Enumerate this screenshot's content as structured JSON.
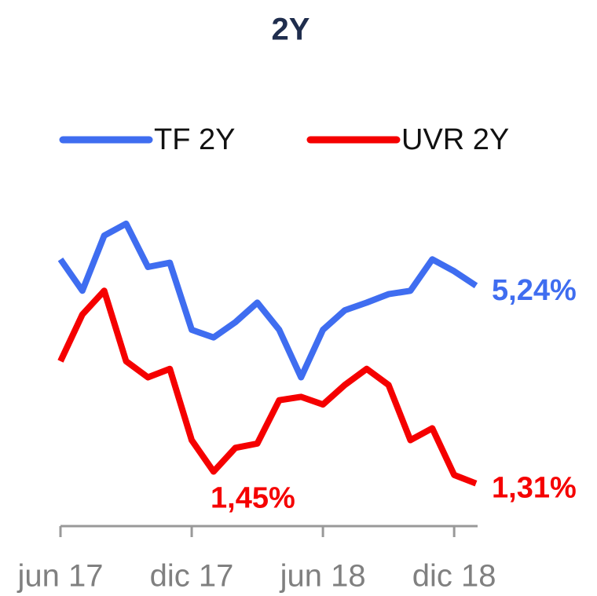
{
  "chart_data": {
    "type": "line",
    "title": "2Y",
    "x": [
      "2017-06",
      "2017-07",
      "2017-08",
      "2017-09",
      "2017-10",
      "2017-11",
      "2017-12",
      "2018-01",
      "2018-02",
      "2018-03",
      "2018-04",
      "2018-05",
      "2018-06",
      "2018-07",
      "2018-08",
      "2018-09",
      "2018-10",
      "2018-11",
      "2018-12",
      "2019-01"
    ],
    "xticks": [
      {
        "value": "2017-06",
        "label": "jun 17"
      },
      {
        "value": "2017-12",
        "label": "dic 17"
      },
      {
        "value": "2018-06",
        "label": "jun 18"
      },
      {
        "value": "2018-12",
        "label": "dic 18"
      }
    ],
    "ylim": [
      2.5,
      6.2
    ],
    "y2lim": [
      0.9,
      4.6
    ],
    "legend": "top",
    "series": [
      {
        "name": "TF 2Y",
        "color": "#3f6df0",
        "values": [
          5.55,
          5.18,
          5.83,
          5.97,
          5.46,
          5.51,
          4.72,
          4.63,
          4.81,
          5.04,
          4.72,
          4.16,
          4.72,
          4.95,
          5.04,
          5.14,
          5.18,
          5.55,
          5.41,
          5.24
        ],
        "value_labels": [
          null,
          null,
          null,
          null,
          null,
          null,
          null,
          null,
          null,
          null,
          null,
          null,
          null,
          null,
          null,
          null,
          null,
          null,
          null,
          "5,24%"
        ]
      },
      {
        "name": "UVR 2Y",
        "color": "#f50000",
        "axis": "y2",
        "values": [
          2.75,
          3.3,
          3.58,
          2.75,
          2.56,
          2.66,
          1.82,
          1.45,
          1.73,
          1.78,
          2.29,
          2.33,
          2.24,
          2.47,
          2.66,
          2.47,
          1.82,
          1.96,
          1.41,
          1.31
        ],
        "value_labels": [
          null,
          null,
          null,
          null,
          null,
          null,
          null,
          "1,45%",
          null,
          null,
          null,
          null,
          null,
          null,
          null,
          null,
          null,
          null,
          null,
          "1,31%"
        ]
      }
    ]
  }
}
